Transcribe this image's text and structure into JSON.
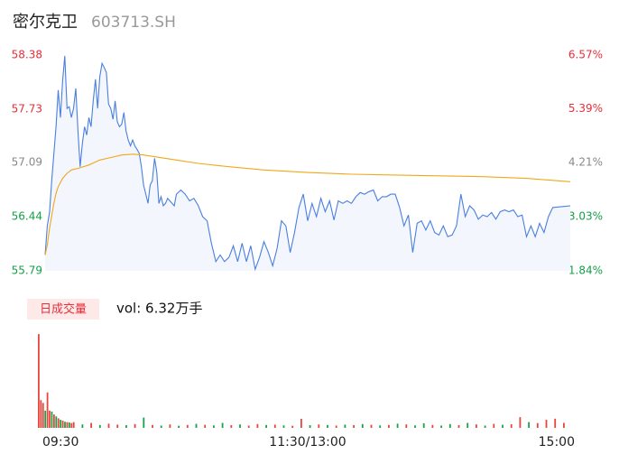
{
  "chart_data": {
    "type": "line",
    "title": "密尔克卫",
    "subtitle": "603713.SH",
    "xlim": [
      0,
      240
    ],
    "xticks": [
      {
        "value": 0,
        "label": "09:30"
      },
      {
        "value": 120,
        "label": "11:30/13:00"
      },
      {
        "value": 240,
        "label": "15:00"
      }
    ],
    "ylim": [
      55.79,
      58.38
    ],
    "yticks": [
      {
        "value": 58.38,
        "label": "58.38"
      },
      {
        "value": 57.73,
        "label": "57.73"
      },
      {
        "value": 57.09,
        "label": "57.09"
      },
      {
        "value": 56.44,
        "label": "56.44"
      },
      {
        "value": 55.79,
        "label": "55.79"
      }
    ],
    "ytick_colors": [
      "#e5303a",
      "#e5303a",
      "#888888",
      "#14a04a",
      "#14a04a"
    ],
    "y2lim": [
      1.84,
      6.57
    ],
    "y2ticks": [
      {
        "value": 6.57,
        "label": "6.57%"
      },
      {
        "value": 5.39,
        "label": "5.39%"
      },
      {
        "value": 4.21,
        "label": "4.21%"
      },
      {
        "value": 3.03,
        "label": "3.03%"
      },
      {
        "value": 1.84,
        "label": "1.84%"
      }
    ],
    "grid": false,
    "area_color": "#f3f6fd",
    "series": [
      {
        "color": "#4a7fe0",
        "x": [
          0,
          1,
          2,
          3,
          5,
          6,
          7,
          8,
          9,
          10,
          11,
          12,
          13,
          14,
          15,
          16,
          17,
          18,
          19,
          20,
          21,
          22,
          23,
          24,
          25,
          26,
          27,
          28,
          29,
          30,
          31,
          32,
          33,
          34,
          35,
          36,
          37,
          38,
          39,
          40,
          41,
          42,
          43,
          44,
          45,
          46,
          47,
          48,
          49,
          50,
          51,
          52,
          53,
          54,
          55,
          56,
          57,
          58,
          59,
          60,
          62,
          64,
          66,
          68,
          70,
          72,
          74,
          76,
          78,
          80,
          82,
          84,
          86,
          88,
          90,
          92,
          94,
          96,
          98,
          100,
          102,
          104,
          106,
          108,
          110,
          112,
          114,
          116,
          118,
          120,
          122,
          124,
          126,
          128,
          130,
          132,
          134,
          136,
          138,
          140,
          142,
          144,
          146,
          148,
          150,
          152,
          154,
          156,
          158,
          160,
          162,
          164,
          166,
          168,
          170,
          172,
          174,
          176,
          178,
          180,
          182,
          184,
          186,
          188,
          190,
          192,
          194,
          196,
          198,
          200,
          202,
          204,
          206,
          208,
          210,
          212,
          214,
          216,
          218,
          220,
          222,
          224,
          226,
          228,
          230,
          232,
          236,
          240
        ],
        "values": [
          55.98,
          56.33,
          56.49,
          56.87,
          57.52,
          57.96,
          57.63,
          58.07,
          58.37,
          57.74,
          57.76,
          57.63,
          57.74,
          57.98,
          57.47,
          57.04,
          57.31,
          57.52,
          57.42,
          57.63,
          57.52,
          57.83,
          58.09,
          57.74,
          58.12,
          58.28,
          58.23,
          58.17,
          57.79,
          57.74,
          57.61,
          57.83,
          57.58,
          57.52,
          57.55,
          57.69,
          57.47,
          57.36,
          57.29,
          57.36,
          57.29,
          57.25,
          57.2,
          57.04,
          56.82,
          56.71,
          56.6,
          56.82,
          56.87,
          57.14,
          56.98,
          56.6,
          56.68,
          56.57,
          56.6,
          56.66,
          56.63,
          56.6,
          56.57,
          56.71,
          56.76,
          56.71,
          56.63,
          56.66,
          56.57,
          56.44,
          56.39,
          56.12,
          55.9,
          55.98,
          55.9,
          55.95,
          56.09,
          55.9,
          56.12,
          55.9,
          56.09,
          55.81,
          55.95,
          56.14,
          56.01,
          55.85,
          56.06,
          56.39,
          56.33,
          56.01,
          56.25,
          56.55,
          56.71,
          56.39,
          56.6,
          56.44,
          56.66,
          56.5,
          56.63,
          56.4,
          56.63,
          56.6,
          56.63,
          56.6,
          56.68,
          56.73,
          56.71,
          56.74,
          56.76,
          56.63,
          56.68,
          56.68,
          56.71,
          56.71,
          56.55,
          56.33,
          56.46,
          56.01,
          56.36,
          56.39,
          56.28,
          56.39,
          56.25,
          56.22,
          56.33,
          56.2,
          56.22,
          56.33,
          56.71,
          56.44,
          56.57,
          56.52,
          56.41,
          56.46,
          56.44,
          56.49,
          56.41,
          56.5,
          56.52,
          56.5,
          56.52,
          56.44,
          56.46,
          56.2,
          56.33,
          56.2,
          56.36,
          56.25,
          56.44,
          56.55,
          56.56,
          56.57
        ]
      },
      {
        "color": "#f0a818",
        "x": [
          0,
          1,
          2,
          3,
          4,
          5,
          6,
          8,
          10,
          12,
          15,
          20,
          25,
          30,
          35,
          40,
          45,
          50,
          60,
          70,
          80,
          100,
          120,
          140,
          160,
          180,
          200,
          220,
          240
        ],
        "values": [
          55.98,
          56.1,
          56.3,
          56.45,
          56.6,
          56.72,
          56.8,
          56.9,
          56.96,
          57.0,
          57.02,
          57.06,
          57.12,
          57.15,
          57.18,
          57.19,
          57.18,
          57.16,
          57.12,
          57.08,
          57.05,
          57.0,
          56.97,
          56.95,
          56.94,
          56.93,
          56.92,
          56.9,
          56.86
        ]
      }
    ],
    "volume": {
      "tag": "日成交量",
      "total": "vol: 6.32万手",
      "ylim": [
        0,
        5000
      ],
      "up_color": "#e8453c",
      "down_color": "#1aa34a",
      "x": [
        0,
        1,
        2,
        3,
        4,
        5,
        6,
        7,
        8,
        9,
        10,
        11,
        12,
        13,
        14,
        15,
        16,
        20,
        24,
        28,
        32,
        36,
        40,
        44,
        48,
        52,
        56,
        60,
        64,
        68,
        72,
        76,
        80,
        84,
        88,
        92,
        96,
        100,
        104,
        108,
        112,
        116,
        120,
        124,
        128,
        132,
        136,
        140,
        144,
        148,
        152,
        156,
        160,
        164,
        168,
        172,
        176,
        180,
        184,
        188,
        192,
        196,
        200,
        204,
        208,
        212,
        216,
        220,
        224,
        228,
        232,
        236,
        240
      ],
      "values": [
        4900,
        1450,
        1300,
        900,
        1850,
        900,
        850,
        700,
        600,
        500,
        420,
        380,
        320,
        300,
        280,
        250,
        300,
        180,
        260,
        150,
        220,
        170,
        140,
        200,
        540,
        150,
        120,
        180,
        110,
        150,
        210,
        160,
        130,
        260,
        140,
        180,
        120,
        200,
        150,
        170,
        130,
        110,
        470,
        140,
        180,
        150,
        120,
        170,
        140,
        200,
        160,
        130,
        150,
        220,
        180,
        130,
        240,
        150,
        120,
        200,
        140,
        260,
        180,
        120,
        210,
        160,
        190,
        560,
        300,
        250,
        420,
        480,
        260
      ],
      "rising": [
        true,
        true,
        true,
        false,
        true,
        true,
        false,
        true,
        false,
        true,
        false,
        true,
        false,
        true,
        false,
        true,
        true,
        false,
        true,
        false,
        true,
        true,
        false,
        true,
        false,
        true,
        false,
        true,
        false,
        true,
        false,
        true,
        false,
        false,
        true,
        false,
        true,
        true,
        false,
        true,
        false,
        true,
        true,
        false,
        true,
        false,
        true,
        false,
        true,
        false,
        true,
        false,
        true,
        false,
        true,
        false,
        false,
        true,
        false,
        false,
        true,
        false,
        true,
        false,
        true,
        false,
        true,
        true,
        false,
        true,
        true,
        true,
        true
      ]
    }
  }
}
